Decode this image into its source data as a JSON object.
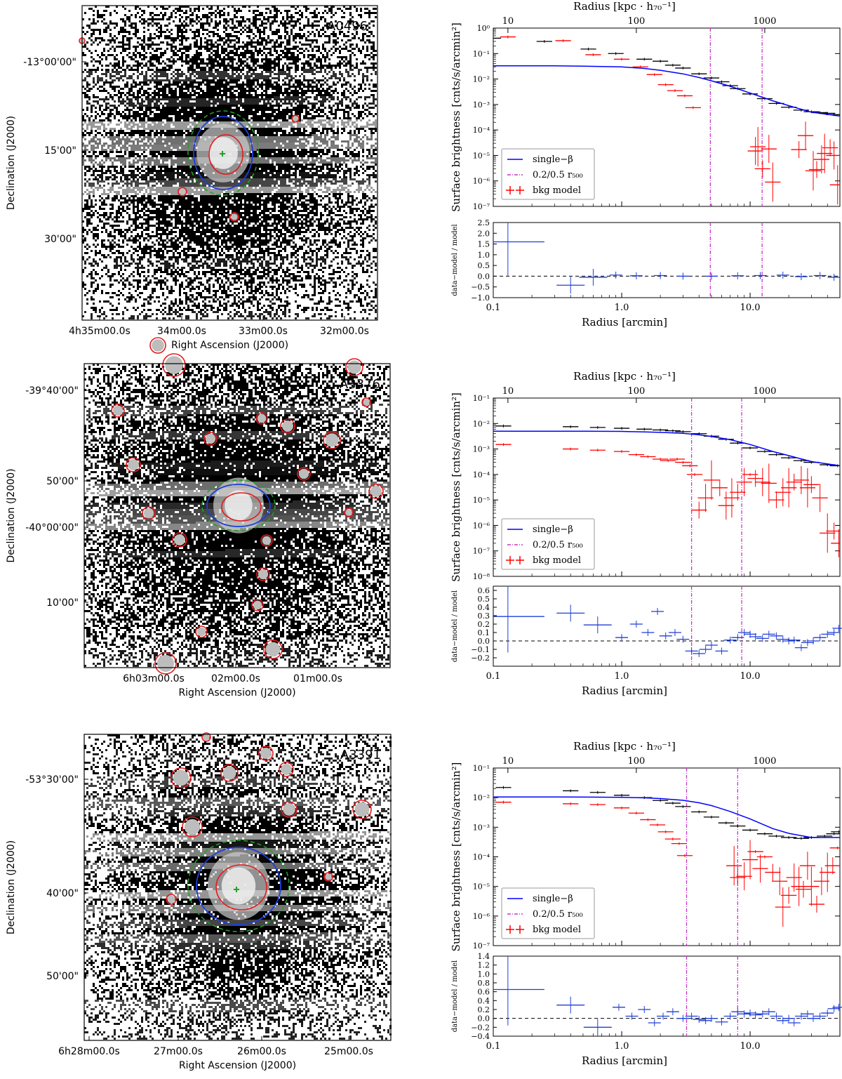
{
  "chart_data": [
    {
      "type": "image",
      "name": "A0496",
      "title": "A0496",
      "xlabel": "Right Ascension (J2000)",
      "ylabel": "Declination (J2000)",
      "xticks": [
        "4h35m00.0s",
        "34m00.0s",
        "33m00.0s",
        "32m00.0s"
      ],
      "yticks": [
        "-13°00'00\"",
        "15'00\"",
        "30'00\""
      ]
    },
    {
      "type": "line",
      "name": "A0496-profile",
      "top_xlabel": "Radius [kpc · h₇₀⁻¹]",
      "top_xticks": [
        "10",
        "100",
        "1000"
      ],
      "xlabel": "Radius [arcmin]",
      "xticks": [
        "0.1",
        "1.0",
        "10.0"
      ],
      "xlim_log10": [
        -1,
        1.699
      ],
      "ylabel": "Surface brightness [cnts/s/arcmin²]",
      "ylim_exp": [
        -7,
        0
      ],
      "yticks": [
        "10⁻⁷",
        "10⁻⁶",
        "10⁻⁵",
        "10⁻⁴",
        "10⁻³",
        "10⁻²",
        "10⁻¹",
        "10⁰"
      ],
      "vlines_arcmin": [
        4.9,
        12.4
      ],
      "legend": {
        "single_beta": "single−β",
        "r500": "0.2/0.5 r₅₀₀",
        "bkg": "bkg model"
      },
      "series": [
        {
          "name": "data",
          "color": "#000000",
          "x": [
            0.1,
            0.25,
            0.55,
            0.9,
            1.5,
            2.0,
            2.5,
            3.0,
            4.0,
            5.0,
            6.0,
            7.0,
            8.0,
            10.0,
            13.0,
            16.0,
            20.0,
            25.0,
            30.0,
            35.0,
            40.0,
            45.0
          ],
          "y": [
            0.4,
            0.3,
            0.15,
            0.1,
            0.06,
            0.05,
            0.035,
            0.027,
            0.016,
            0.011,
            0.0078,
            0.0055,
            0.0042,
            0.0026,
            0.0017,
            0.0011,
            0.00078,
            0.0006,
            0.00052,
            0.00048,
            0.00045,
            0.0004
          ]
        },
        {
          "name": "single-beta",
          "color": "#0000ff",
          "x": [
            0.1,
            0.3,
            0.5,
            1,
            1.5,
            2,
            3,
            4,
            5,
            7,
            10,
            15,
            20,
            30,
            50
          ],
          "y": [
            0.033,
            0.033,
            0.032,
            0.03,
            0.026,
            0.022,
            0.016,
            0.0115,
            0.0085,
            0.0052,
            0.0028,
            0.0014,
            0.0009,
            0.0005,
            0.00035
          ]
        },
        {
          "name": "bkg model",
          "color": "#ff0000",
          "x": [
            0.13,
            0.35,
            0.6,
            1.0,
            1.4,
            1.8,
            2.2,
            2.6,
            3.1,
            3.6,
            11,
            11.5,
            12.5,
            14,
            15,
            24,
            27,
            31,
            33,
            36,
            38,
            42,
            45,
            48
          ],
          "y": [
            0.45,
            0.32,
            0.09,
            0.06,
            0.03,
            0.015,
            0.006,
            0.0035,
            0.0022,
            0.00075,
            1.5e-05,
            2.2e-05,
            3e-06,
            1.8e-05,
            9e-07,
            1.7e-05,
            6e-05,
            2.5e-06,
            2.8e-06,
            7e-06,
            1.2e-05,
            2e-05,
            1e-05,
            7e-07
          ]
        }
      ],
      "residuals": {
        "ylabel": "data−model / model",
        "ylim": [
          -1.0,
          2.5
        ],
        "yticks": [
          "−1.0",
          "−0.5",
          "0.0",
          "0.5",
          "1.0",
          "1.5",
          "2.0",
          "2.5"
        ],
        "x": [
          0.13,
          0.4,
          0.6,
          0.9,
          1.3,
          2.0,
          3.0,
          5.0,
          8.0,
          12.0,
          18.0,
          25.0,
          35.0,
          45.0
        ],
        "y": [
          1.6,
          -0.42,
          -0.05,
          0.05,
          0.02,
          0.03,
          0.0,
          0.0,
          0.02,
          0.03,
          0.05,
          -0.02,
          0.03,
          -0.05
        ]
      }
    },
    {
      "type": "image",
      "name": "A3376",
      "title": "A3376",
      "xlabel": "Right Ascension (J2000)",
      "ylabel": "Declination (J2000)",
      "xticks": [
        "6h03m00.0s",
        "02m00.0s",
        "01m00.0s"
      ],
      "yticks": [
        "-39°40'00\"",
        "50'00\"",
        "-40°00'00\"",
        "10'00\""
      ]
    },
    {
      "type": "line",
      "name": "A3376-profile",
      "top_xlabel": "Radius [kpc · h₇₀⁻¹]",
      "top_xticks": [
        "10",
        "100",
        "1000"
      ],
      "xlabel": "Radius [arcmin]",
      "xticks": [
        "0.1",
        "1.0",
        "10.0"
      ],
      "xlim_log10": [
        -1,
        1.699
      ],
      "ylabel": "Surface brightness [cnts/s/arcmin²]",
      "ylim_exp": [
        -8,
        -1
      ],
      "yticks": [
        "10⁻⁸",
        "10⁻⁷",
        "10⁻⁶",
        "10⁻⁵",
        "10⁻⁴",
        "10⁻³",
        "10⁻²",
        "10⁻¹"
      ],
      "vlines_arcmin": [
        3.5,
        8.6
      ],
      "legend": {
        "single_beta": "single−β",
        "r500": "0.2/0.5 r₅₀₀",
        "bkg": "bkg model"
      },
      "series": [
        {
          "name": "data",
          "color": "#000000",
          "x": [
            0.12,
            0.4,
            0.65,
            1.0,
            1.5,
            2.0,
            2.5,
            3.0,
            4.0,
            5.0,
            6.5,
            8.0,
            10.0,
            13.0,
            16.0,
            20.0,
            25.0,
            30.0,
            40.0,
            48.0
          ],
          "y": [
            0.008,
            0.0075,
            0.007,
            0.0065,
            0.006,
            0.0056,
            0.0052,
            0.0048,
            0.004,
            0.0032,
            0.0024,
            0.0017,
            0.0011,
            0.0008,
            0.0006,
            0.00045,
            0.00035,
            0.0003,
            0.00024,
            0.00022
          ]
        },
        {
          "name": "single-beta",
          "color": "#0000ff",
          "x": [
            0.1,
            0.3,
            0.5,
            1,
            1.5,
            2,
            3,
            4,
            5,
            7,
            10,
            15,
            20,
            30,
            50
          ],
          "y": [
            0.005,
            0.005,
            0.005,
            0.0049,
            0.0047,
            0.0045,
            0.0041,
            0.0036,
            0.0031,
            0.0023,
            0.0015,
            0.0008,
            0.00055,
            0.00032,
            0.00022
          ]
        },
        {
          "name": "bkg model",
          "color": "#ff0000",
          "x": [
            0.12,
            0.4,
            0.65,
            1.0,
            1.3,
            1.6,
            2.0,
            2.3,
            2.7,
            3.0,
            3.4,
            3.7,
            4.0,
            4.5,
            5.0,
            5.8,
            6.5,
            7.2,
            8.0,
            9.0,
            10.0,
            11.0,
            12.5,
            14.0,
            16.0,
            18.0,
            20.0,
            22.0,
            25.0,
            28.0,
            30.0,
            35.0,
            40.0,
            45.0,
            49.0
          ],
          "y": [
            0.0015,
            0.001,
            0.0009,
            0.0008,
            0.0006,
            0.0005,
            0.0004,
            0.00035,
            0.0004,
            0.0003,
            0.00022,
            0.0001,
            4e-06,
            1.2e-05,
            6e-05,
            3e-05,
            6e-06,
            1.2e-05,
            2e-05,
            5e-05,
            0.0001,
            7e-05,
            5e-05,
            4.5e-05,
            1e-05,
            2e-05,
            3e-05,
            5e-05,
            6e-05,
            3e-05,
            4e-05,
            1.2e-05,
            5e-07,
            6e-07,
            2e-07
          ]
        }
      ],
      "residuals": {
        "ylabel": "data−model / model",
        "ylim": [
          -0.3,
          0.65
        ],
        "yticks": [
          "−0.2",
          "−0.1",
          "0.0",
          "0.1",
          "0.2",
          "0.3",
          "0.4",
          "0.5",
          "0.6"
        ],
        "x": [
          0.13,
          0.4,
          0.65,
          1.0,
          1.3,
          1.6,
          1.9,
          2.2,
          2.6,
          3.0,
          3.5,
          4.0,
          4.5,
          5.0,
          6.0,
          7.0,
          8.0,
          9.0,
          10.0,
          11.0,
          12.5,
          14.0,
          16.0,
          18.0,
          20.0,
          22.0,
          25.0,
          28.0,
          31.0,
          35.0,
          40.0,
          45.0,
          49.0
        ],
        "y": [
          0.29,
          0.33,
          0.19,
          0.04,
          0.2,
          0.1,
          0.35,
          0.06,
          0.1,
          0.02,
          -0.12,
          -0.15,
          -0.1,
          -0.05,
          -0.12,
          0.01,
          0.04,
          0.1,
          0.08,
          0.05,
          0.03,
          0.08,
          0.06,
          0.02,
          0.0,
          0.01,
          -0.08,
          -0.02,
          0.0,
          0.04,
          0.08,
          0.1,
          0.15
        ]
      }
    },
    {
      "type": "image",
      "name": "A3391",
      "title": "A3391",
      "xlabel": "Right Ascension (J2000)",
      "ylabel": "Declination (J2000)",
      "xticks": [
        "6h28m00.0s",
        "27m00.0s",
        "26m00.0s",
        "25m00.0s"
      ],
      "yticks": [
        "-53°30'00\"",
        "40'00\"",
        "50'00\""
      ]
    },
    {
      "type": "line",
      "name": "A3391-profile",
      "top_xlabel": "Radius [kpc · h₇₀⁻¹]",
      "top_xticks": [
        "10",
        "100",
        "1000"
      ],
      "xlabel": "Radius [arcmin]",
      "xticks": [
        "0.1",
        "1.0",
        "10.0"
      ],
      "xlim_log10": [
        -1,
        1.699
      ],
      "ylabel": "Surface brightness [cnts/s/arcmin²]",
      "ylim_exp": [
        -7,
        -1
      ],
      "yticks": [
        "10⁻⁷",
        "10⁻⁶",
        "10⁻⁵",
        "10⁻⁴",
        "10⁻³",
        "10⁻²",
        "10⁻¹"
      ],
      "vlines_arcmin": [
        3.2,
        8.0
      ],
      "legend": {
        "single_beta": "single−β",
        "r500": "0.2/0.5 r₅₀₀",
        "bkg": "bkg model"
      },
      "series": [
        {
          "name": "data",
          "color": "#000000",
          "x": [
            0.12,
            0.4,
            0.65,
            1.0,
            1.5,
            2.0,
            2.5,
            3.0,
            4.0,
            5.0,
            6.5,
            8.0,
            10.0,
            13.0,
            16.0,
            20.0,
            25.0,
            30.0,
            38.0,
            45.0,
            49.0
          ],
          "y": [
            0.022,
            0.017,
            0.015,
            0.012,
            0.01,
            0.008,
            0.0065,
            0.005,
            0.0033,
            0.0022,
            0.0014,
            0.0011,
            0.0008,
            0.0006,
            0.0005,
            0.00045,
            0.00042,
            0.00045,
            0.0005,
            0.0006,
            0.0007
          ]
        },
        {
          "name": "single-beta",
          "color": "#0000ff",
          "x": [
            0.1,
            0.3,
            0.5,
            1,
            1.5,
            2,
            3,
            4,
            5,
            7,
            10,
            15,
            20,
            30,
            50
          ],
          "y": [
            0.0105,
            0.0105,
            0.0104,
            0.0102,
            0.0098,
            0.0093,
            0.0081,
            0.0067,
            0.0054,
            0.0034,
            0.0019,
            0.0009,
            0.00062,
            0.00045,
            0.00045
          ]
        },
        {
          "name": "bkg model",
          "color": "#ff0000",
          "x": [
            0.12,
            0.4,
            0.65,
            1.0,
            1.3,
            1.6,
            1.9,
            2.2,
            2.5,
            2.8,
            3.1,
            7.5,
            8.0,
            9.0,
            10.0,
            11.0,
            12.0,
            13.0,
            15.0,
            17.0,
            18.0,
            20.0,
            22.0,
            24.0,
            26.0,
            28.0,
            30.0,
            33.0,
            36.0,
            40.0,
            44.0,
            48.0
          ],
          "y": [
            0.007,
            0.0062,
            0.0058,
            0.0045,
            0.003,
            0.0018,
            0.0012,
            0.0007,
            0.0004,
            0.00028,
            0.00011,
            5e-05,
            2e-05,
            2.2e-05,
            8e-05,
            0.00015,
            4e-05,
            0.0001,
            3e-05,
            1.5e-05,
            2e-06,
            5e-06,
            2e-05,
            1e-05,
            8e-06,
            5e-05,
            1e-05,
            2.5e-06,
            1.5e-05,
            3e-05,
            5e-05,
            0.0002
          ]
        }
      ],
      "residuals": {
        "ylabel": "data−model / model",
        "ylim": [
          -0.4,
          1.4
        ],
        "yticks": [
          "−0.4",
          "−0.2",
          "0.0",
          "0.2",
          "0.4",
          "0.6",
          "0.8",
          "1.0",
          "1.2",
          "1.4"
        ],
        "x": [
          0.13,
          0.4,
          0.65,
          0.95,
          1.2,
          1.5,
          1.8,
          2.1,
          2.5,
          3.0,
          3.5,
          4.0,
          4.5,
          5.0,
          6.0,
          7.0,
          8.0,
          9.0,
          10.0,
          11.0,
          12.5,
          14.0,
          16.0,
          18.0,
          20.0,
          22.0,
          25.0,
          28.0,
          31.0,
          35.0,
          40.0,
          45.0,
          49.0
        ],
        "y": [
          0.65,
          0.3,
          -0.2,
          0.25,
          0.05,
          0.2,
          -0.1,
          0.05,
          0.15,
          0.0,
          0.05,
          -0.02,
          -0.05,
          0.0,
          -0.08,
          0.05,
          0.15,
          0.1,
          0.12,
          0.08,
          0.1,
          0.15,
          0.05,
          -0.05,
          0.0,
          -0.1,
          0.05,
          0.1,
          0.0,
          0.05,
          0.12,
          0.22,
          0.25
        ]
      }
    }
  ]
}
